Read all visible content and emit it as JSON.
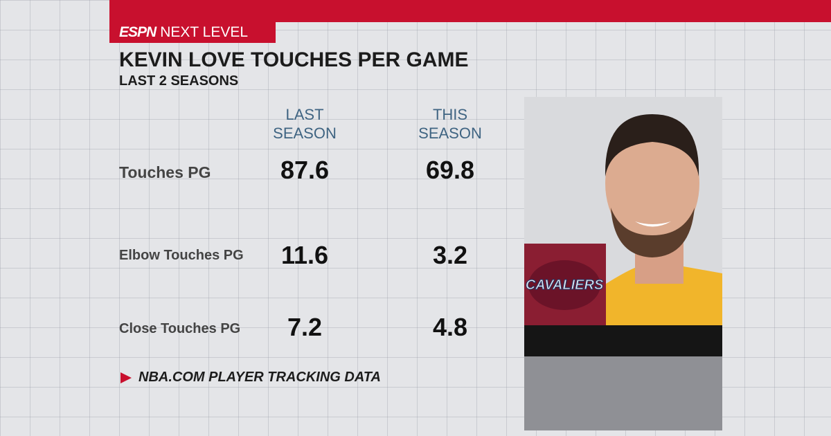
{
  "header": {
    "brand": "ESPN",
    "subbrand": "NEXT LEVEL",
    "title": "KEVIN LOVE TOUCHES PER GAME",
    "subtitle": "LAST 2 SEASONS"
  },
  "table": {
    "columns": [
      "LAST SEASON",
      "THIS SEASON"
    ],
    "rows": [
      [
        "Touches PG",
        "87.6",
        "69.8"
      ],
      [
        "Elbow Touches PG",
        "11.6",
        "3.2"
      ],
      [
        "Close Touches PG",
        "7.2",
        "4.8"
      ]
    ]
  },
  "logo": "CAVALIERS",
  "source": "NBA.COM PLAYER TRACKING DATA"
}
